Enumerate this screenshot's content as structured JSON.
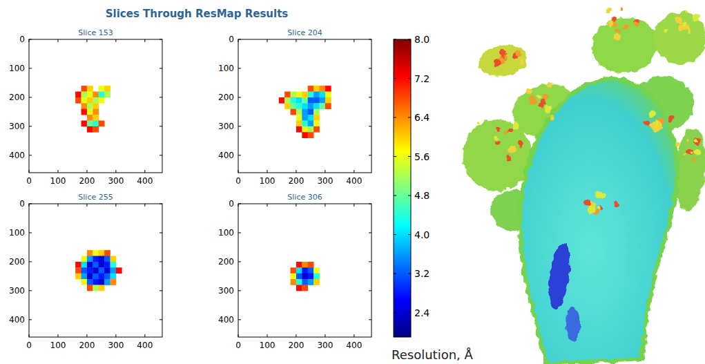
{
  "title": "Slices Through ResMap Results",
  "colorbar": {
    "label": "Resolution, Å",
    "range": [
      1.9,
      8.0
    ],
    "ticks": [
      2.4,
      3.2,
      {
        "value": 4,
        "label": "4.0"
      },
      4.8,
      5.6,
      6.4,
      7.2,
      {
        "value": 8,
        "label": "8.0"
      }
    ]
  },
  "chart_data": [
    {
      "type": "heatmap",
      "title": "Slice 153",
      "xlim": [
        0,
        460
      ],
      "ylim": [
        460,
        0
      ],
      "xticks": [
        0,
        100,
        200,
        300,
        400
      ],
      "yticks": [
        0,
        100,
        200,
        300,
        400
      ],
      "x_edges": [
        140,
        160,
        180,
        200,
        220,
        240,
        260,
        280,
        300,
        320,
        340
      ],
      "y_edges": [
        140,
        160,
        180,
        200,
        220,
        240,
        260,
        280,
        300,
        320,
        340
      ],
      "cells": [
        [
          null,
          null,
          null,
          null,
          null,
          null,
          null,
          null,
          null,
          null
        ],
        [
          null,
          null,
          6.8,
          6.0,
          null,
          5.6,
          6.0,
          null,
          null,
          null
        ],
        [
          null,
          7.2,
          5.2,
          5.6,
          6.4,
          4.4,
          5.2,
          null,
          null,
          null
        ],
        [
          null,
          6.8,
          5.6,
          6.0,
          5.2,
          5.6,
          null,
          null,
          null,
          null
        ],
        [
          null,
          null,
          6.4,
          5.2,
          6.0,
          null,
          null,
          null,
          null,
          null
        ],
        [
          null,
          null,
          7.2,
          5.6,
          6.4,
          null,
          null,
          null,
          null,
          null
        ],
        [
          null,
          null,
          null,
          6.4,
          6.0,
          null,
          null,
          null,
          null,
          null
        ],
        [
          null,
          null,
          7.2,
          4.8,
          4.4,
          6.8,
          null,
          null,
          null,
          null
        ],
        [
          null,
          null,
          null,
          7.2,
          6.8,
          null,
          null,
          null,
          null,
          null
        ],
        [
          null,
          null,
          null,
          null,
          null,
          null,
          null,
          null,
          null,
          null
        ]
      ]
    },
    {
      "type": "heatmap",
      "title": "Slice 204",
      "xlim": [
        0,
        460
      ],
      "ylim": [
        460,
        0
      ],
      "xticks": [
        0,
        100,
        200,
        300,
        400
      ],
      "yticks": [
        0,
        100,
        200,
        300,
        400
      ],
      "x_edges": [
        140,
        160,
        180,
        200,
        220,
        240,
        260,
        280,
        300,
        320,
        340
      ],
      "y_edges": [
        140,
        160,
        180,
        200,
        220,
        240,
        260,
        280,
        300,
        320,
        340
      ],
      "cells": [
        [
          null,
          null,
          null,
          null,
          null,
          null,
          null,
          null,
          null,
          null
        ],
        [
          null,
          null,
          null,
          null,
          null,
          6.8,
          6.0,
          6.4,
          7.2,
          null
        ],
        [
          null,
          6.8,
          5.2,
          5.6,
          6.0,
          4.4,
          3.6,
          4.0,
          5.6,
          null
        ],
        [
          7.2,
          5.2,
          4.4,
          4.0,
          4.8,
          3.2,
          3.2,
          3.6,
          6.0,
          null
        ],
        [
          null,
          6.0,
          4.8,
          4.4,
          4.0,
          3.6,
          4.0,
          4.8,
          6.8,
          null
        ],
        [
          null,
          null,
          6.8,
          5.2,
          3.6,
          3.2,
          5.2,
          null,
          null,
          null
        ],
        [
          null,
          null,
          null,
          5.6,
          3.6,
          4.0,
          6.0,
          null,
          null,
          null
        ],
        [
          null,
          null,
          null,
          6.0,
          4.4,
          3.6,
          5.6,
          null,
          null,
          null
        ],
        [
          null,
          null,
          null,
          7.2,
          5.6,
          5.2,
          6.8,
          null,
          null,
          null
        ],
        [
          null,
          null,
          null,
          null,
          7.2,
          6.8,
          null,
          null,
          null,
          null
        ]
      ]
    },
    {
      "type": "heatmap",
      "title": "Slice 255",
      "xlim": [
        0,
        460
      ],
      "ylim": [
        460,
        0
      ],
      "xticks": [
        0,
        100,
        200,
        300,
        400
      ],
      "yticks": [
        0,
        100,
        200,
        300,
        400
      ],
      "x_edges": [
        140,
        160,
        180,
        200,
        220,
        240,
        260,
        280,
        300,
        320,
        340
      ],
      "y_edges": [
        140,
        160,
        180,
        200,
        220,
        240,
        260,
        280,
        300,
        320,
        340
      ],
      "cells": [
        [
          null,
          null,
          null,
          null,
          null,
          null,
          null,
          null,
          null,
          null
        ],
        [
          null,
          null,
          null,
          6.4,
          5.6,
          6.0,
          6.8,
          null,
          null,
          null
        ],
        [
          null,
          null,
          5.6,
          3.6,
          2.8,
          2.4,
          3.2,
          6.0,
          null,
          null
        ],
        [
          null,
          7.2,
          4.0,
          2.4,
          3.2,
          2.4,
          2.8,
          4.4,
          null,
          null
        ],
        [
          null,
          6.8,
          3.2,
          2.8,
          2.4,
          3.2,
          2.4,
          3.6,
          7.2,
          null
        ],
        [
          null,
          6.0,
          3.6,
          2.4,
          3.2,
          2.8,
          3.2,
          4.0,
          null,
          null
        ],
        [
          null,
          null,
          5.6,
          3.2,
          2.8,
          2.4,
          3.6,
          6.4,
          null,
          null
        ],
        [
          null,
          null,
          null,
          6.8,
          5.2,
          6.0,
          null,
          null,
          null,
          null
        ],
        [
          null,
          null,
          null,
          null,
          null,
          null,
          null,
          null,
          null,
          null
        ],
        [
          null,
          null,
          null,
          null,
          null,
          null,
          null,
          null,
          null,
          null
        ]
      ]
    },
    {
      "type": "heatmap",
      "title": "Slice 306",
      "xlim": [
        0,
        460
      ],
      "ylim": [
        460,
        0
      ],
      "xticks": [
        0,
        100,
        200,
        300,
        400
      ],
      "yticks": [
        0,
        100,
        200,
        300,
        400
      ],
      "x_edges": [
        140,
        160,
        180,
        200,
        220,
        240,
        260,
        280,
        300,
        320,
        340
      ],
      "y_edges": [
        140,
        160,
        180,
        200,
        220,
        240,
        260,
        280,
        300,
        320,
        340
      ],
      "cells": [
        [
          null,
          null,
          null,
          null,
          null,
          null,
          null,
          null,
          null,
          null
        ],
        [
          null,
          null,
          null,
          null,
          null,
          null,
          null,
          null,
          null,
          null
        ],
        [
          null,
          null,
          null,
          null,
          null,
          null,
          null,
          null,
          null,
          null
        ],
        [
          null,
          null,
          null,
          7.2,
          6.4,
          6.8,
          null,
          null,
          null,
          null
        ],
        [
          null,
          null,
          6.8,
          4.0,
          2.8,
          3.2,
          5.6,
          null,
          null,
          null
        ],
        [
          null,
          null,
          5.6,
          3.2,
          2.4,
          2.8,
          4.4,
          null,
          null,
          null
        ],
        [
          null,
          null,
          6.4,
          4.4,
          3.2,
          3.6,
          6.0,
          null,
          null,
          null
        ],
        [
          null,
          null,
          null,
          7.2,
          6.8,
          null,
          null,
          null,
          null,
          null
        ],
        [
          null,
          null,
          null,
          null,
          null,
          null,
          null,
          null,
          null,
          null
        ],
        [
          null,
          null,
          null,
          null,
          null,
          null,
          null,
          null,
          null,
          null
        ]
      ]
    }
  ]
}
